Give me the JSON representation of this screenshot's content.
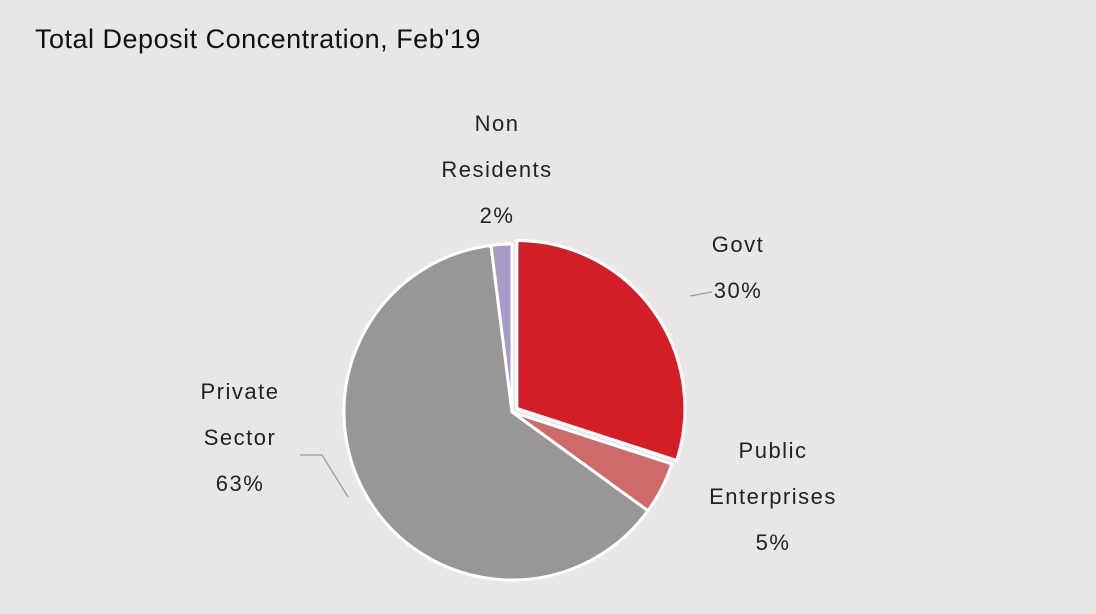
{
  "chart_data": {
    "type": "pie",
    "title": "Total Deposit Concentration, Feb'19",
    "categories": [
      "Govt",
      "Public Enterprises",
      "Private Sector",
      "Non Residents"
    ],
    "values": [
      30,
      5,
      63,
      2
    ],
    "value_labels": [
      "30%",
      "5%",
      "63%",
      "2%"
    ],
    "colors": [
      "#d21f27",
      "#cd6b6b",
      "#989696",
      "#a99bc9"
    ]
  }
}
